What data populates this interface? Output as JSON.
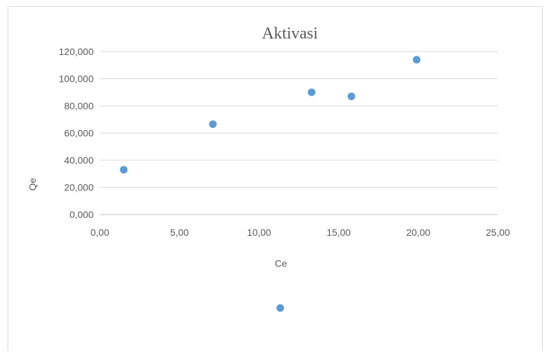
{
  "chart_data": {
    "type": "scatter",
    "title": "Aktivasi",
    "xlabel": "Ce",
    "ylabel": "Qe",
    "xlim": [
      0,
      25
    ],
    "ylim": [
      0,
      120
    ],
    "x_ticks": [
      "0,00",
      "5,00",
      "10,00",
      "15,00",
      "20,00",
      "25,00"
    ],
    "y_ticks": [
      "0,000",
      "20,000",
      "40,000",
      "60,000",
      "80,000",
      "100,000",
      "120,000"
    ],
    "grid": true,
    "legend": false,
    "marker_color": "#5b9bd5",
    "points": [
      {
        "x": 1.5,
        "y": 33
      },
      {
        "x": 7.1,
        "y": 66.5
      },
      {
        "x": 13.3,
        "y": 90
      },
      {
        "x": 15.8,
        "y": 87
      },
      {
        "x": 19.9,
        "y": 114
      }
    ],
    "stray_marker": true
  }
}
